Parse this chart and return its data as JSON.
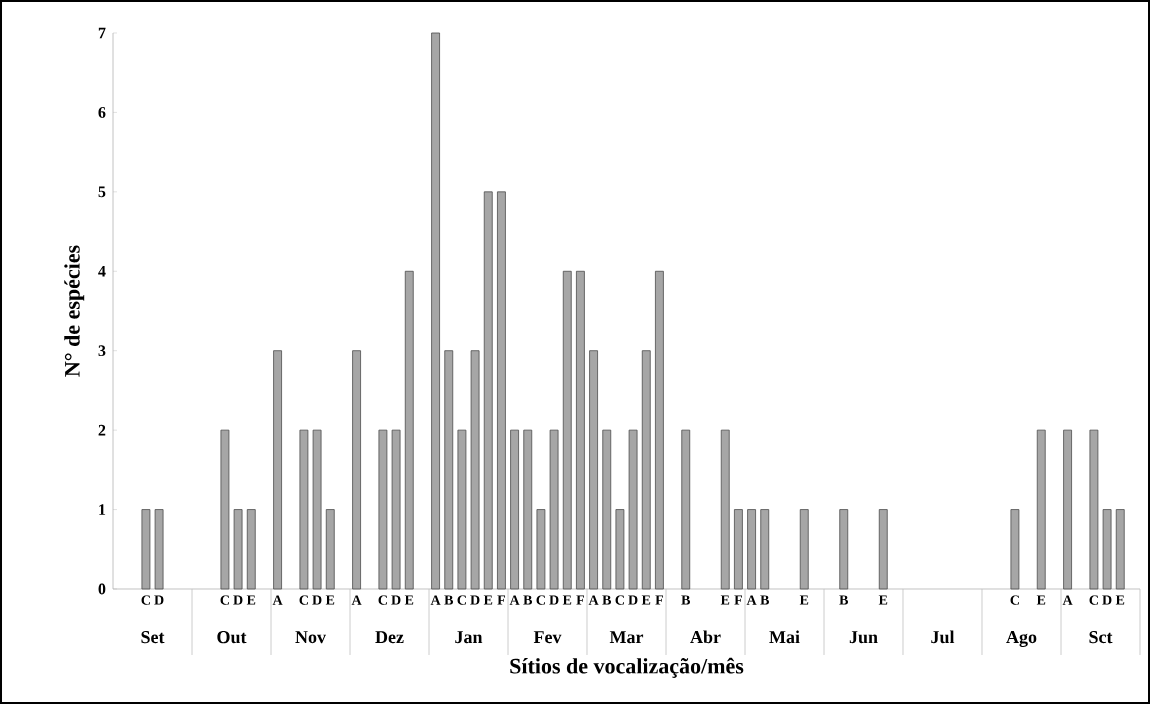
{
  "chart_data": {
    "type": "bar",
    "xlabel": "Sítios de vocalização/mês",
    "ylabel": "N° de espécies",
    "categories": [
      null,
      null,
      "C",
      "D",
      null,
      null,
      null,
      null,
      "C",
      "D",
      "E",
      null,
      "A",
      null,
      "C",
      "D",
      "E",
      null,
      "A",
      null,
      "C",
      "D",
      "E",
      null,
      "A",
      "B",
      "C",
      "D",
      "E",
      "F",
      "A",
      "B",
      "C",
      "D",
      "E",
      "F",
      "A",
      "B",
      "C",
      "D",
      "E",
      "F",
      null,
      "B",
      null,
      null,
      "E",
      "F",
      "A",
      "B",
      null,
      null,
      "E",
      null,
      null,
      "B",
      null,
      null,
      "E",
      null,
      null,
      null,
      null,
      null,
      null,
      null,
      null,
      null,
      "C",
      null,
      "E",
      null,
      "A",
      null,
      "C",
      "D",
      "E",
      null
    ],
    "values": [
      null,
      null,
      1,
      1,
      null,
      null,
      null,
      null,
      2,
      1,
      1,
      null,
      3,
      null,
      2,
      2,
      1,
      null,
      3,
      null,
      2,
      2,
      4,
      null,
      7,
      3,
      2,
      3,
      5,
      5,
      2,
      2,
      1,
      2,
      4,
      4,
      3,
      2,
      1,
      2,
      3,
      4,
      null,
      2,
      null,
      null,
      2,
      1,
      1,
      1,
      null,
      null,
      1,
      null,
      null,
      1,
      null,
      null,
      1,
      null,
      null,
      null,
      null,
      null,
      null,
      null,
      null,
      null,
      1,
      null,
      2,
      null,
      2,
      null,
      2,
      1,
      1,
      null
    ],
    "color": "#a6a6a6",
    "ylim": [
      0,
      7
    ],
    "yticks": [
      0,
      1,
      2,
      3,
      4,
      5,
      6,
      7
    ],
    "annotations": [
      "Set",
      "Out",
      "Nov",
      "Dez",
      "Jan",
      "Fev",
      "Mar",
      "Abr",
      "Mai",
      "Jun",
      "Jul",
      "Ago",
      "Sct"
    ]
  }
}
